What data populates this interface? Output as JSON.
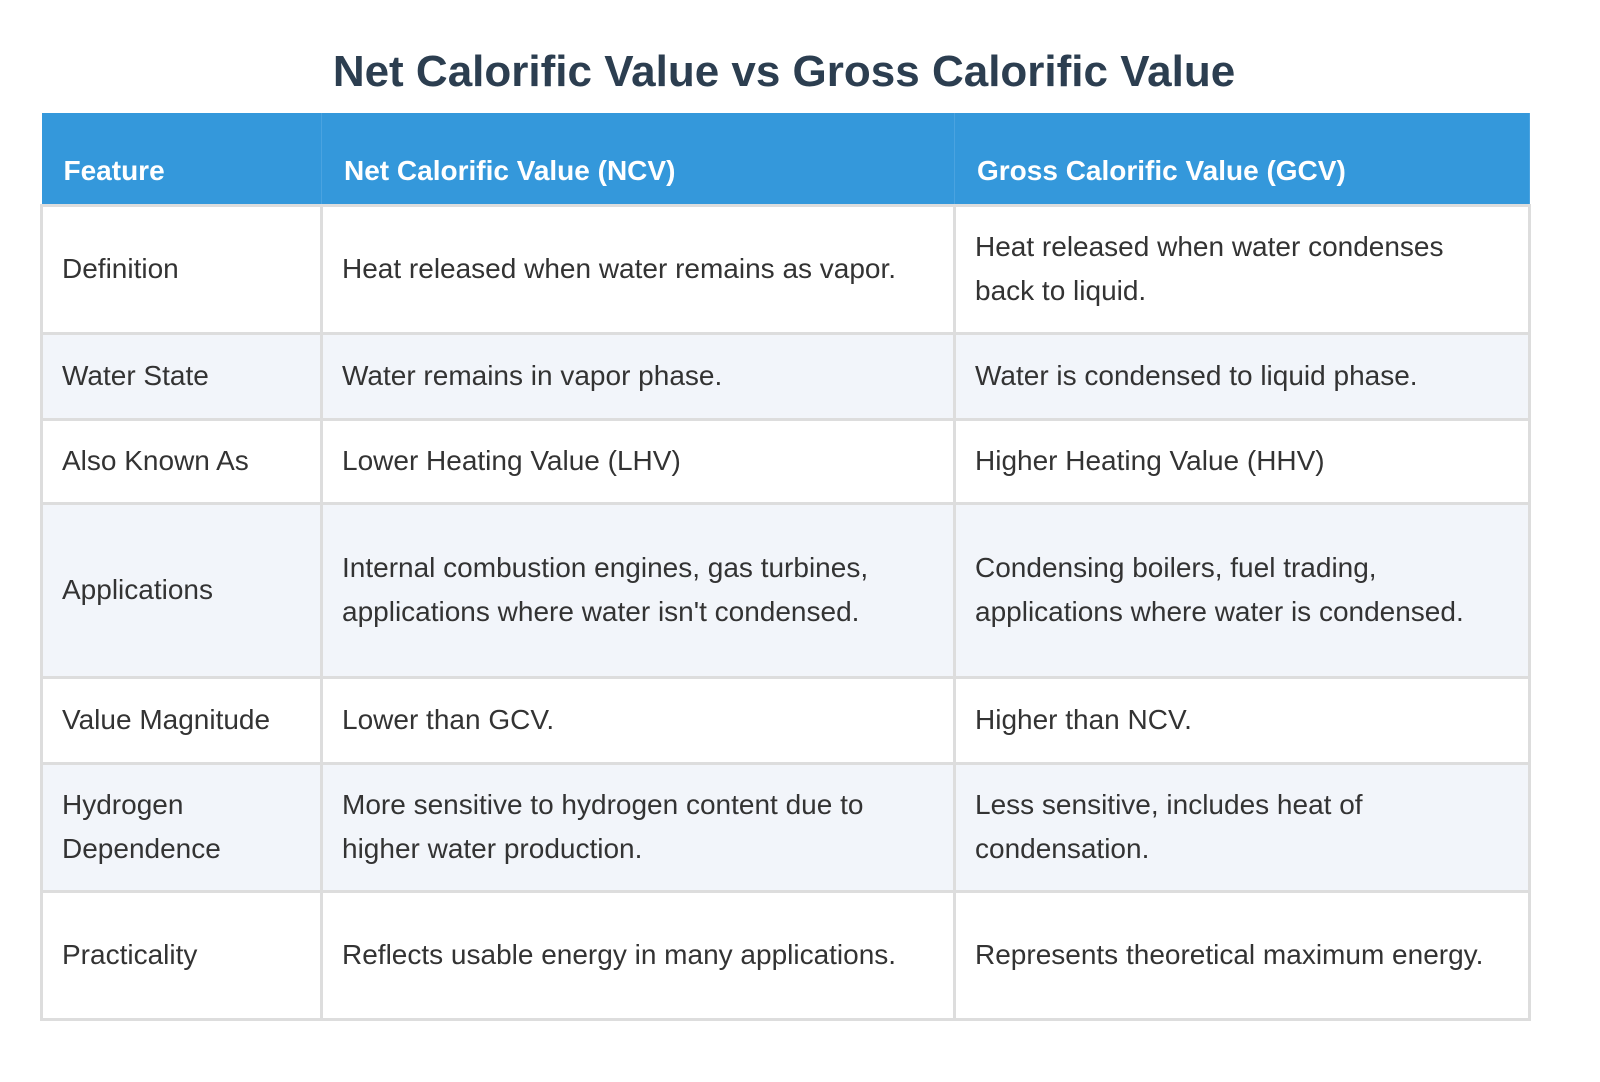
{
  "title": "Net Calorific Value vs Gross Calorific Value",
  "headers": [
    "Feature",
    "Net Calorific Value (NCV)",
    "Gross Calorific Value (GCV)"
  ],
  "rows": [
    [
      "Definition",
      "Heat released when water remains as vapor.",
      "Heat released when water condenses back to liquid."
    ],
    [
      "Water State",
      "Water remains in vapor phase.",
      "Water is condensed to liquid phase."
    ],
    [
      "Also Known As",
      "Lower Heating Value (LHV)",
      "Higher Heating Value (HHV)"
    ],
    [
      "Applications",
      "Internal combustion engines, gas turbines, applications where water isn't condensed.",
      "Condensing boilers, fuel trading, applications where water is condensed."
    ],
    [
      "Value Magnitude",
      "Lower than GCV.",
      "Higher than NCV."
    ],
    [
      "Hydrogen Dependence",
      "More sensitive to hydrogen content due to higher water production.",
      "Less sensitive, includes heat of condensation."
    ],
    [
      "Practicality",
      "Reflects usable energy in many applications.",
      "Represents theoretical maximum energy."
    ]
  ],
  "colors": {
    "header_bg": "#3498db",
    "title": "#2c3e50",
    "alt_row": "#f2f5fa"
  }
}
